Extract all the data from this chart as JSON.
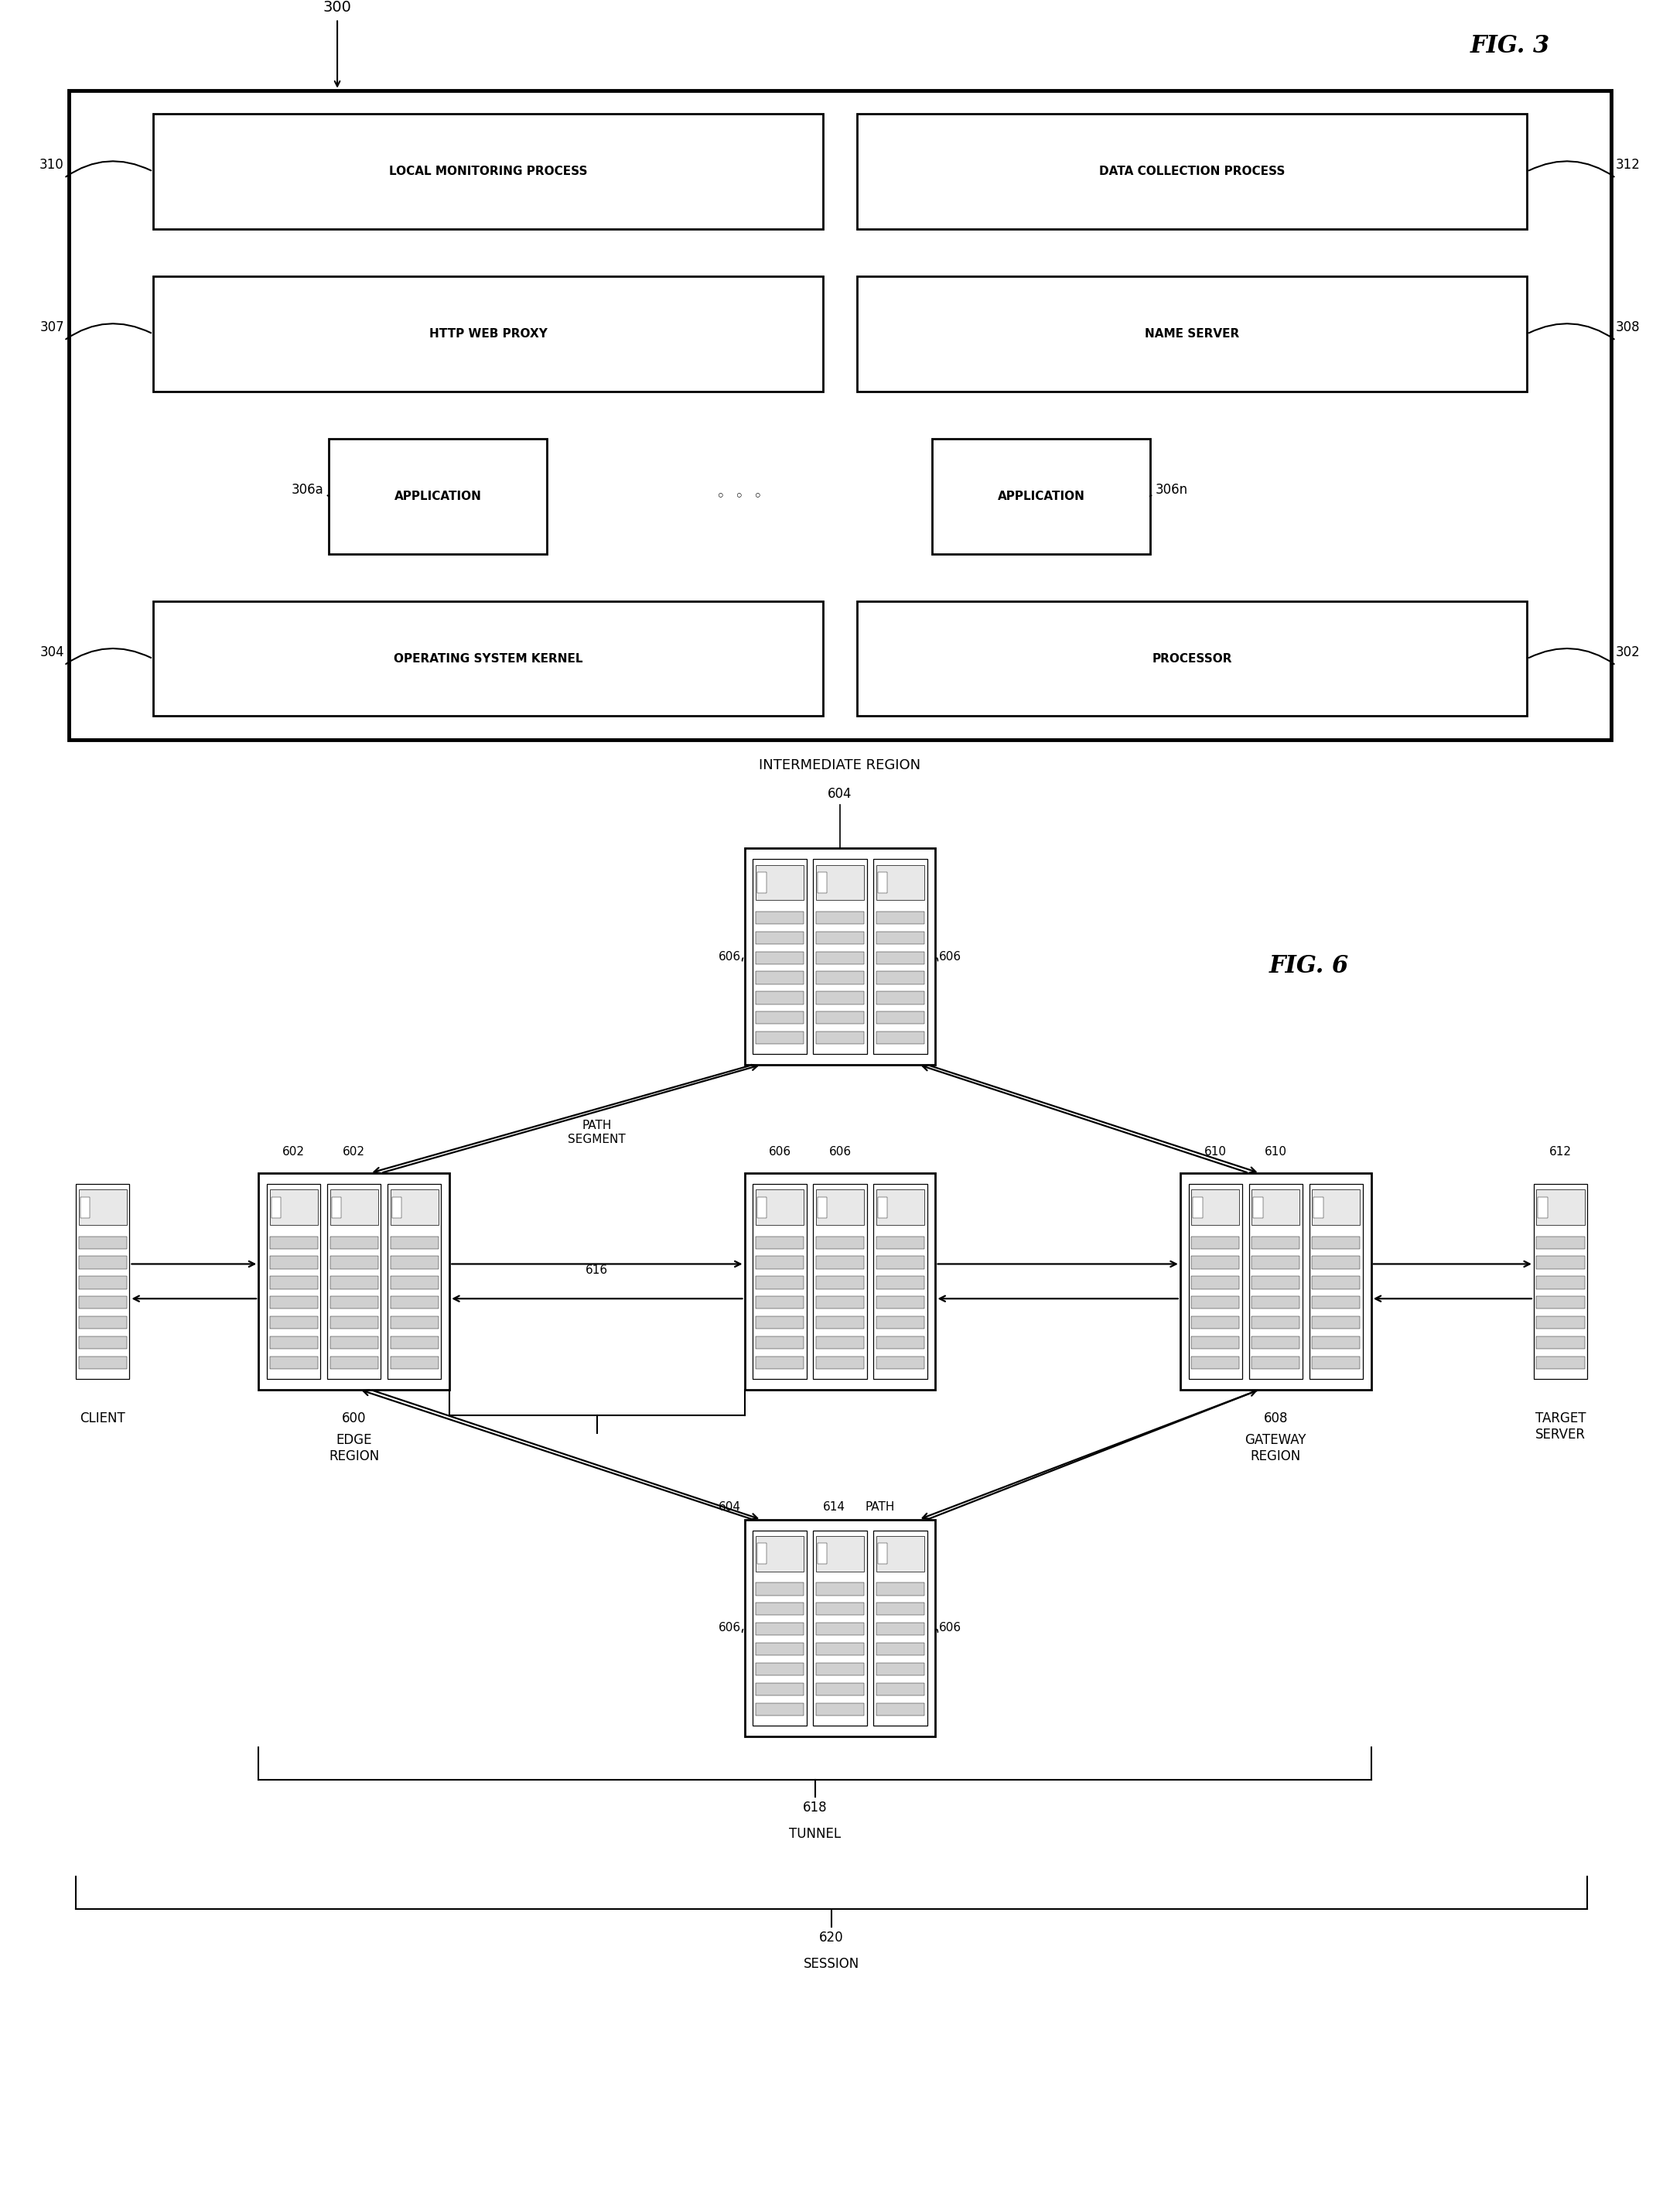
{
  "fig_width": 21.72,
  "fig_height": 28.34,
  "bg_color": "#ffffff",
  "fig3": {
    "title": "FIG. 3",
    "label_300": "300",
    "rows": [
      {
        "label_left": "310",
        "label_right": "312",
        "text_left": "LOCAL MONITORING PROCESS",
        "text_right": "DATA COLLECTION PROCESS"
      },
      {
        "label_left": "307",
        "label_right": "308",
        "text_left": "HTTP WEB PROXY",
        "text_right": "NAME SERVER"
      },
      {
        "label_left": "306a",
        "label_right": "306n",
        "text_left": "APPLICATION",
        "text_right": "APPLICATION",
        "dots": true
      },
      {
        "label_left": "304",
        "label_right": "302",
        "text_left": "OPERATING SYSTEM KERNEL",
        "text_right": "PROCESSOR"
      }
    ]
  },
  "fig6": {
    "title": "FIG. 6",
    "label_intermediate": "INTERMEDIATE REGION",
    "label_604_top": "604",
    "label_606_tl": "606",
    "label_606_tr": "606",
    "label_602_l": "602",
    "label_602_r": "602",
    "label_606_ml": "606",
    "label_606_mr": "606",
    "label_610_l": "610",
    "label_610_r": "610",
    "label_612": "612",
    "label_600": "600",
    "label_edge": "EDGE\nREGION",
    "label_path_segment": "PATH\nSEGMENT",
    "label_616": "616",
    "label_608": "608",
    "label_gateway": "GATEWAY\nREGION",
    "label_604_mid": "604",
    "label_614": "614",
    "label_path": "PATH",
    "label_606_bl": "606",
    "label_606_br": "606",
    "label_618": "618",
    "label_tunnel": "TUNNEL",
    "label_620": "620",
    "label_session": "SESSION",
    "label_client": "CLIENT",
    "label_target": "TARGET\nSERVER"
  }
}
